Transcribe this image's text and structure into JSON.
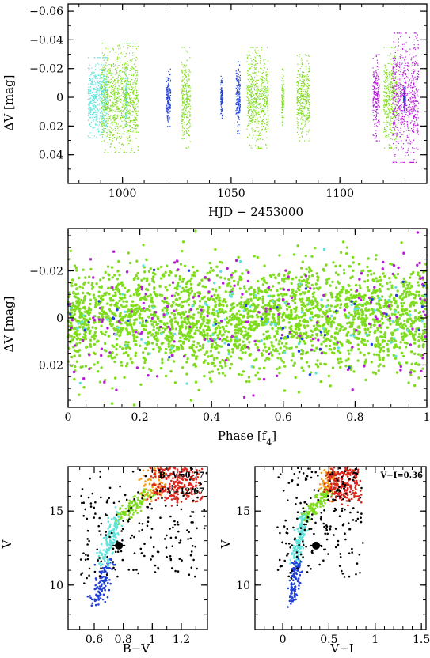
{
  "colors": {
    "cyan": "#5fe3dc",
    "green": "#7fdc1e",
    "blue": "#1f3fd6",
    "magenta": "#b41fd6",
    "black": "#000000",
    "orange": "#f59d1b",
    "red": "#d8261b"
  },
  "chart_data": [
    {
      "id": "lightcurve",
      "type": "scatter",
      "title": "",
      "xlabel": "HJD − 2453000",
      "ylabel": "ΔV [mag]",
      "xlim": [
        975,
        1140
      ],
      "ylim": [
        0.06,
        -0.065
      ],
      "y_inverted": true,
      "x_ticks": [
        1000,
        1050,
        1100
      ],
      "y_ticks": [
        -0.06,
        -0.04,
        -0.02,
        0,
        0.02,
        0.04
      ],
      "y_tick_labels": [
        "−0.06",
        "−0.04",
        "−0.02",
        "0",
        "0.02",
        "0.04"
      ],
      "series": [
        {
          "color_key": "cyan",
          "segments": [
            [
              984,
              993,
              0.028
            ],
            [
              1001,
              1002,
              0.02
            ]
          ]
        },
        {
          "color_key": "green",
          "segments": [
            [
              990,
              1007,
              0.038
            ],
            [
              1027,
              1031,
              0.035
            ],
            [
              1057,
              1067,
              0.035
            ],
            [
              1073,
              1074,
              0.02
            ],
            [
              1080,
              1086,
              0.03
            ],
            [
              1120,
              1126,
              0.035
            ]
          ]
        },
        {
          "color_key": "blue",
          "segments": [
            [
              1020,
              1022,
              0.02
            ],
            [
              1045,
              1046,
              0.015
            ],
            [
              1052,
              1054,
              0.025
            ],
            [
              1129,
              1130,
              0.01
            ]
          ]
        },
        {
          "color_key": "magenta",
          "segments": [
            [
              1115,
              1118,
              0.03
            ],
            [
              1124,
              1136,
              0.045
            ]
          ]
        }
      ]
    },
    {
      "id": "phase",
      "type": "scatter",
      "title": "",
      "xlabel": "Phase [f4]",
      "ylabel": "ΔV [mag]",
      "xlim": [
        0,
        1
      ],
      "ylim": [
        0.038,
        -0.038
      ],
      "y_inverted": true,
      "x_ticks": [
        0,
        0.2,
        0.4,
        0.6,
        0.8,
        1
      ],
      "x_tick_labels": [
        "0",
        "0.2",
        "0.4",
        "0.6",
        "0.8",
        "1"
      ],
      "y_ticks": [
        -0.02,
        0,
        0.02
      ],
      "y_tick_labels": [
        "−0.02",
        "0",
        "0.02"
      ],
      "series": [
        {
          "color_key": "green",
          "count": 2600,
          "sigma": 0.011
        },
        {
          "color_key": "magenta",
          "count": 170,
          "sigma": 0.013
        },
        {
          "color_key": "cyan",
          "count": 90,
          "sigma": 0.01
        },
        {
          "color_key": "blue",
          "count": 40,
          "sigma": 0.01
        }
      ]
    },
    {
      "id": "cmd-bv",
      "type": "scatter",
      "title": "",
      "xlabel": "B−V",
      "ylabel": "V",
      "xlim": [
        0.42,
        1.38
      ],
      "ylim": [
        7,
        18
      ],
      "y_inverted": true,
      "x_ticks": [
        0.6,
        0.8,
        1,
        1.2
      ],
      "x_tick_labels": [
        "0.6",
        "0.8",
        "1",
        "1.2"
      ],
      "y_ticks": [
        10,
        15
      ],
      "star": {
        "x": 0.77,
        "y": 12.67
      },
      "annotations": [
        "B−V=0.77",
        "V=12.67"
      ]
    },
    {
      "id": "cmd-vi",
      "type": "scatter",
      "title": "",
      "xlabel": "V−I",
      "ylabel": "V",
      "xlim": [
        -0.3,
        1.55
      ],
      "ylim": [
        7,
        18
      ],
      "y_inverted": true,
      "x_ticks": [
        0,
        0.5,
        1,
        1.5
      ],
      "x_tick_labels": [
        "0",
        "0.5",
        "1",
        "1.5"
      ],
      "y_ticks": [
        10,
        15
      ],
      "star": {
        "x": 0.36,
        "y": 12.67
      },
      "annotations": [
        "V−I=0.36"
      ]
    }
  ]
}
